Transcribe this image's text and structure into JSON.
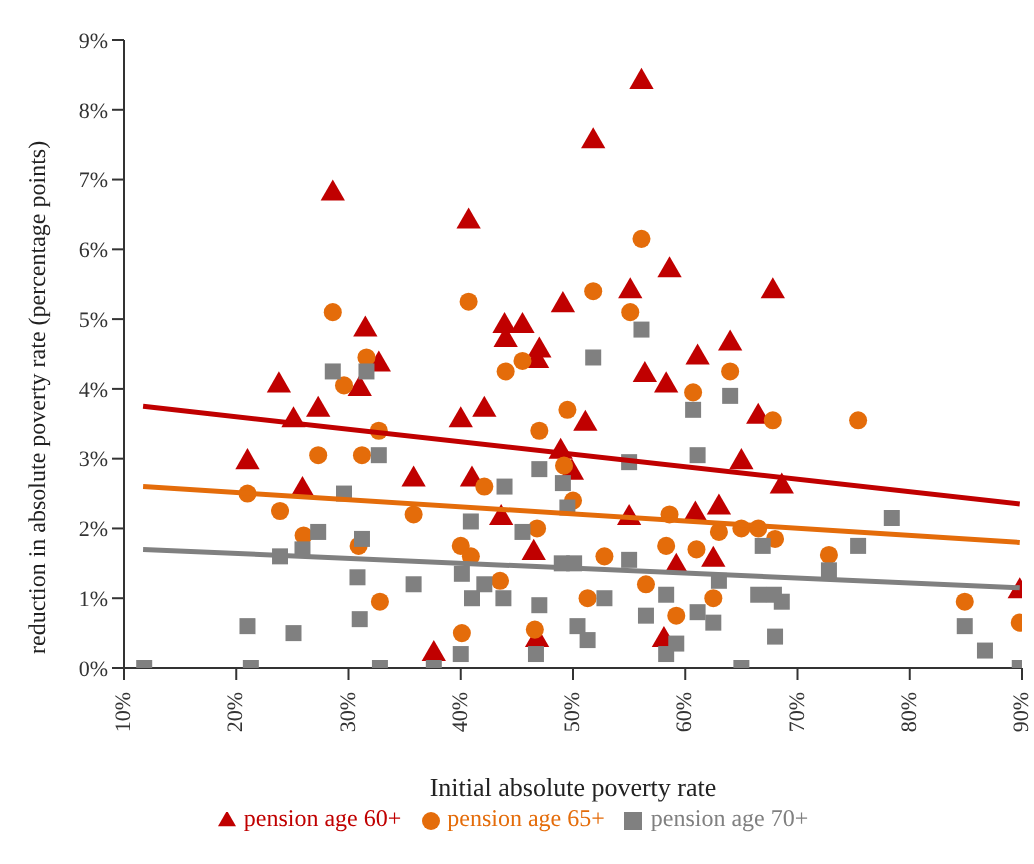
{
  "chart_data": {
    "type": "scatter",
    "xlabel": "Initial absolute poverty rate",
    "ylabel": "reduction in absolute poverty rate (percentage points)",
    "xlim": [
      10,
      90
    ],
    "xticks": [
      {
        "value": 10,
        "label": "10%"
      },
      {
        "value": 20,
        "label": "20%"
      },
      {
        "value": 30,
        "label": "30%"
      },
      {
        "value": 40,
        "label": "40%"
      },
      {
        "value": 50,
        "label": "50%"
      },
      {
        "value": 60,
        "label": "60%"
      },
      {
        "value": 70,
        "label": "70%"
      },
      {
        "value": 80,
        "label": "80%"
      },
      {
        "value": 90,
        "label": "90%"
      }
    ],
    "ylim": [
      0,
      9
    ],
    "yticks": [
      {
        "value": 0,
        "label": "0%"
      },
      {
        "value": 1,
        "label": "1%"
      },
      {
        "value": 2,
        "label": "2%"
      },
      {
        "value": 3,
        "label": "3%"
      },
      {
        "value": 4,
        "label": "4%"
      },
      {
        "value": 5,
        "label": "5%"
      },
      {
        "value": 6,
        "label": "6%"
      },
      {
        "value": 7,
        "label": "7%"
      },
      {
        "value": 8,
        "label": "8%"
      },
      {
        "value": 9,
        "label": "9%"
      }
    ],
    "grid": false,
    "legend": "bottom",
    "series": [
      {
        "name": "pension age 60+",
        "color": "#c00000",
        "marker": "triangle",
        "x": [
          28.6,
          40.7,
          49.1,
          31.5,
          43.9,
          45.5,
          44.0,
          47.0,
          46.8,
          32.7,
          31.0,
          23.8,
          27.3,
          25.1,
          40.0,
          42.1,
          48.9,
          56.1,
          51.8,
          58.6,
          67.8,
          55.1,
          64.0,
          61.1,
          56.4,
          58.3,
          66.5,
          51.1,
          21.0,
          25.9,
          35.8,
          41.0,
          43.6,
          46.5,
          46.8,
          37.6,
          49.9,
          65.0,
          68.6,
          55.0,
          60.9,
          63.0,
          62.5,
          59.2,
          58.1,
          89.8
        ],
        "values": [
          6.8,
          6.4,
          5.2,
          4.85,
          4.9,
          4.9,
          4.7,
          4.55,
          4.4,
          4.35,
          4.0,
          4.05,
          3.7,
          3.55,
          3.55,
          3.7,
          3.1,
          8.4,
          7.55,
          5.7,
          5.4,
          5.4,
          4.65,
          4.45,
          4.2,
          4.05,
          3.6,
          3.5,
          2.95,
          2.55,
          2.7,
          2.7,
          2.15,
          1.65,
          0.4,
          0.2,
          2.8,
          2.95,
          2.6,
          2.15,
          2.2,
          2.3,
          1.55,
          1.45,
          0.4,
          1.1
        ]
      },
      {
        "name": "pension age 65+",
        "color": "#e46c0a",
        "marker": "circle",
        "x": [
          28.6,
          40.7,
          31.6,
          29.6,
          44.0,
          45.5,
          32.7,
          47.0,
          49.5,
          56.1,
          51.8,
          55.1,
          64.0,
          60.7,
          67.8,
          75.4,
          27.3,
          31.2,
          21.0,
          23.9,
          26.0,
          30.9,
          35.8,
          42.1,
          40.0,
          40.9,
          46.8,
          43.5,
          32.8,
          40.1,
          46.6,
          49.2,
          50.0,
          58.6,
          63.0,
          65.0,
          66.5,
          68.0,
          72.8,
          52.8,
          58.3,
          61.0,
          51.3,
          56.5,
          59.2,
          62.5,
          84.9,
          89.8
        ],
        "values": [
          5.1,
          5.25,
          4.45,
          4.05,
          4.25,
          4.4,
          3.4,
          3.4,
          3.7,
          6.15,
          5.4,
          5.1,
          4.25,
          3.95,
          3.55,
          3.55,
          3.05,
          3.05,
          2.5,
          2.25,
          1.9,
          1.75,
          2.2,
          2.6,
          1.75,
          1.6,
          2.0,
          1.25,
          0.95,
          0.5,
          0.55,
          2.9,
          2.4,
          2.2,
          1.95,
          2.0,
          2.0,
          1.85,
          1.62,
          1.6,
          1.75,
          1.7,
          1.0,
          1.2,
          0.75,
          1.0,
          0.95,
          0.65
        ]
      },
      {
        "name": "pension age 70+",
        "color": "#808080",
        "marker": "square",
        "x": [
          28.6,
          31.6,
          32.7,
          56.1,
          51.8,
          60.7,
          64.0,
          61.1,
          55.0,
          29.6,
          27.3,
          23.9,
          25.9,
          31.2,
          30.8,
          21.0,
          25.1,
          31.0,
          35.8,
          40.9,
          43.9,
          47.0,
          45.5,
          40.1,
          42.1,
          41.0,
          43.8,
          47.0,
          40.0,
          46.7,
          11.8,
          21.3,
          32.8,
          37.6,
          49.1,
          49.0,
          50.1,
          49.5,
          55.0,
          52.8,
          50.4,
          51.3,
          56.5,
          58.3,
          59.2,
          58.3,
          61.1,
          62.5,
          63.0,
          66.9,
          66.5,
          67.9,
          68.6,
          68.0,
          65.0,
          72.8,
          75.4,
          78.4,
          84.9,
          86.7,
          89.8
        ],
        "values": [
          4.25,
          4.25,
          3.05,
          4.85,
          4.45,
          3.7,
          3.9,
          3.05,
          2.95,
          2.5,
          1.95,
          1.6,
          1.7,
          1.85,
          1.3,
          0.6,
          0.5,
          0.7,
          1.2,
          2.1,
          2.6,
          2.85,
          1.95,
          1.35,
          1.2,
          1.0,
          1.0,
          0.9,
          0.2,
          0.2,
          0,
          0,
          0,
          0,
          2.65,
          1.5,
          1.5,
          2.3,
          1.55,
          1.0,
          0.6,
          0.4,
          0.75,
          1.05,
          0.35,
          0.2,
          0.8,
          0.65,
          1.25,
          1.75,
          1.05,
          1.05,
          0.95,
          0.45,
          0,
          1.4,
          1.75,
          2.15,
          0.6,
          0.25,
          0
        ]
      },
      {
        "type": "line",
        "color": "#c00000",
        "x": [
          11.7,
          89.8
        ],
        "values": [
          3.75,
          2.35
        ]
      },
      {
        "type": "line",
        "color": "#e46c0a",
        "x": [
          11.7,
          89.8
        ],
        "values": [
          2.6,
          1.8
        ]
      },
      {
        "type": "line",
        "color": "#808080",
        "x": [
          11.7,
          89.8
        ],
        "values": [
          1.7,
          1.15
        ]
      }
    ]
  }
}
